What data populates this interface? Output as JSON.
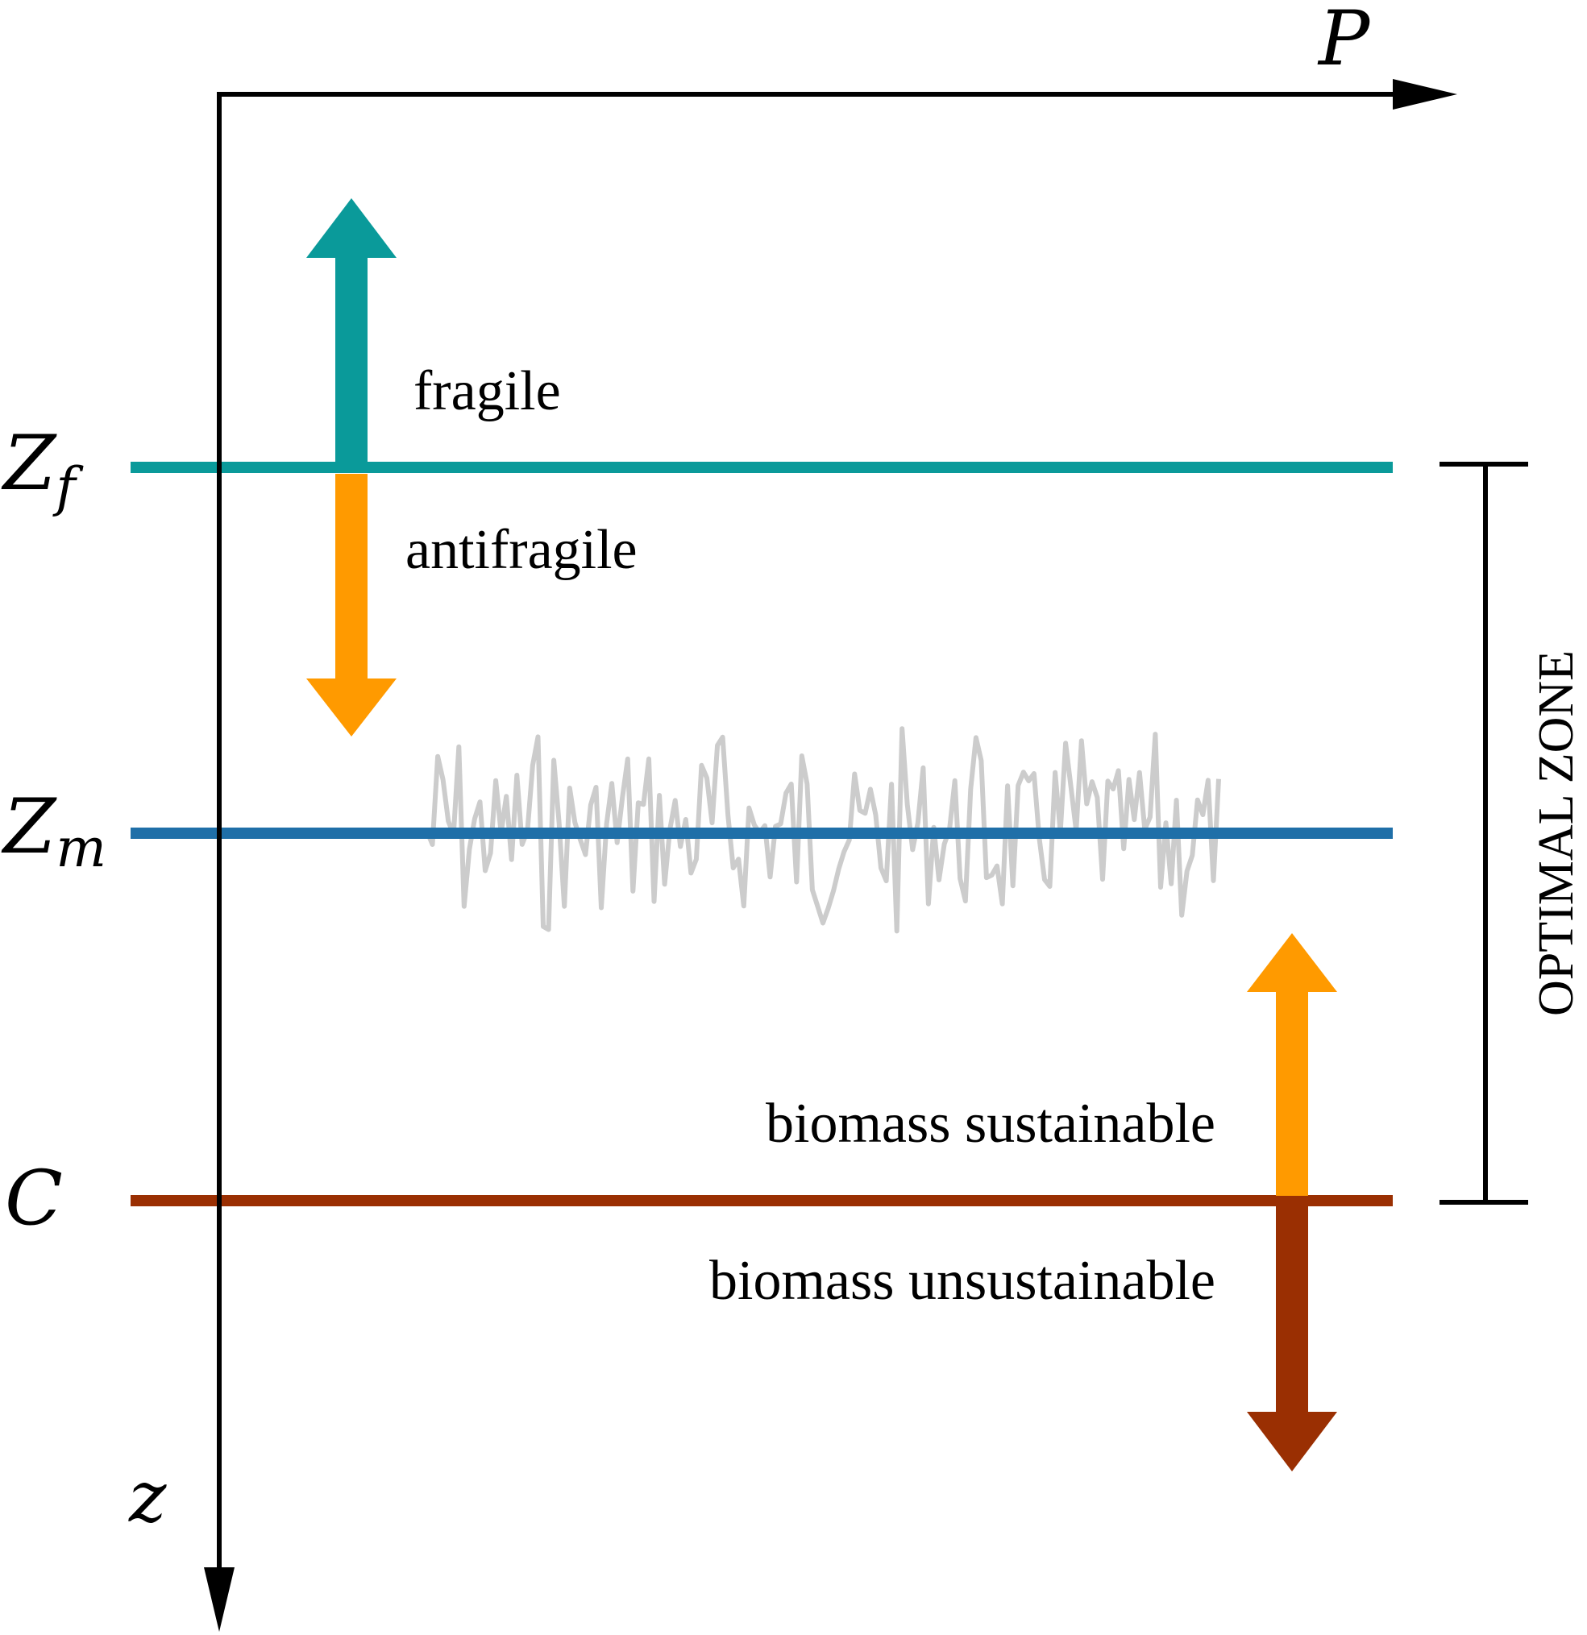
{
  "axes": {
    "x_label": "P",
    "y_label": "z"
  },
  "levels": {
    "zf": {
      "symbol": "Z",
      "subscript": "f",
      "color": "#0A9A9A"
    },
    "zm": {
      "symbol": "Z",
      "subscript": "m",
      "color": "#1F6FA8"
    },
    "c": {
      "symbol": "C",
      "color": "#9A2F02"
    }
  },
  "labels": {
    "fragile": "fragile",
    "antifragile": "antifragile",
    "biomass_sustainable": "biomass sustainable",
    "biomass_unsustainable": "biomass unsustainable",
    "optimal_zone": "OPTIMAL ZONE"
  },
  "arrows": {
    "fragile_color": "#0A9A9A",
    "antifragile_color": "#FF9A00",
    "sustainable_color": "#FF9A00",
    "unsustainable_color": "#9A2F02"
  },
  "colors": {
    "axis": "#000000",
    "noise": "#CCCCCC",
    "text": "#000000"
  }
}
